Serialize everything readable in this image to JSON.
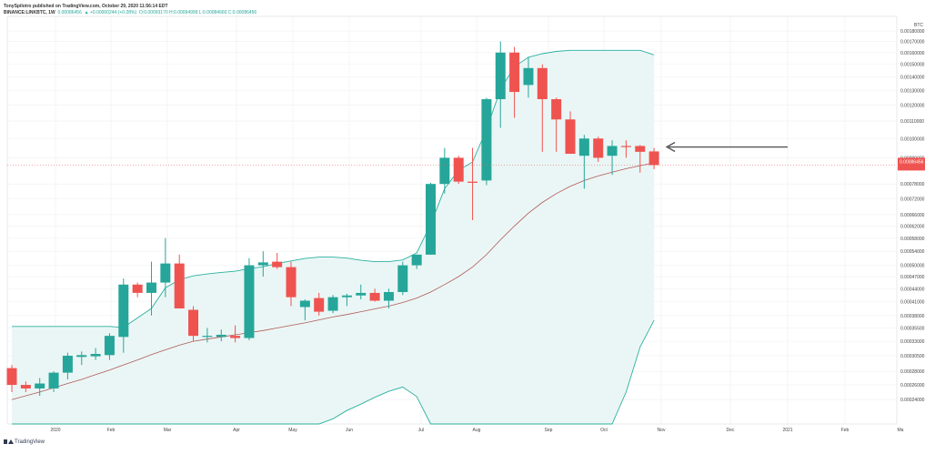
{
  "header": {
    "line1": "TonySpilotro published on TradingView.com, October 29, 2020 11:56:14 EDT",
    "symbol": "BINANCE:LINKBTC, 1W",
    "price": "0.00086456",
    "change": "▲ +0.00000244 (+0.28%)",
    "ohlc": "O:0.00093170 H:0.00094999 L:0.00084660 C:0.00086456"
  },
  "brand": {
    "name": "TradingView"
  },
  "colors": {
    "up": "#26a69a",
    "down": "#ef5350",
    "band": "#2bb0a0",
    "band_fill": "#eaf6f5",
    "basis": "#b05a5a",
    "arrow": "#555555",
    "grid": "#eef0f2"
  },
  "chart_data": {
    "type": "candlestick",
    "currency_label": "BTC",
    "scale": "log",
    "ylim": [
      0.00021,
      0.00195
    ],
    "last_value_label": "0.00086456",
    "y_ticks": [
      "0.00180000",
      "0.00170000",
      "0.00160000",
      "0.00150000",
      "0.00140000",
      "0.00130000",
      "0.00120000",
      "0.00110000",
      "0.00100000",
      "0.00090000",
      "0.00078000",
      "0.00072000",
      "0.00066000",
      "0.00062000",
      "0.00058000",
      "0.00054000",
      "0.00050000",
      "0.00047000",
      "0.00044000",
      "0.00041000",
      "0.00038000",
      "0.00035500",
      "0.00033000",
      "0.00030500",
      "0.00028000",
      "0.00026000",
      "0.00024000"
    ],
    "x_ticks": [
      "2020",
      "Feb",
      "Mar",
      "Apr",
      "May",
      "Jun",
      "Jul",
      "Aug",
      "Sep",
      "Oct",
      "Nov",
      "Dec",
      "2021",
      "Feb",
      "Ma"
    ],
    "candles": [
      {
        "o": 0.000285,
        "h": 0.00029,
        "l": 0.00025,
        "c": 0.00026
      },
      {
        "o": 0.00026,
        "h": 0.000265,
        "l": 0.00025,
        "c": 0.000255
      },
      {
        "o": 0.000255,
        "h": 0.00027,
        "l": 0.000245,
        "c": 0.000262
      },
      {
        "o": 0.000255,
        "h": 0.00028,
        "l": 0.00025,
        "c": 0.000278
      },
      {
        "o": 0.000278,
        "h": 0.00031,
        "l": 0.000268,
        "c": 0.000305
      },
      {
        "o": 0.000303,
        "h": 0.000312,
        "l": 0.00029,
        "c": 0.000306
      },
      {
        "o": 0.000304,
        "h": 0.000318,
        "l": 0.000298,
        "c": 0.000308
      },
      {
        "o": 0.000306,
        "h": 0.000345,
        "l": 0.000298,
        "c": 0.00034
      },
      {
        "o": 0.000338,
        "h": 0.000465,
        "l": 0.00031,
        "c": 0.00045
      },
      {
        "o": 0.00045,
        "h": 0.000455,
        "l": 0.00042,
        "c": 0.00043
      },
      {
        "o": 0.00043,
        "h": 0.00051,
        "l": 0.00038,
        "c": 0.000455
      },
      {
        "o": 0.000455,
        "h": 0.00058,
        "l": 0.00042,
        "c": 0.000505
      },
      {
        "o": 0.000505,
        "h": 0.00053,
        "l": 0.0004,
        "c": 0.000395
      },
      {
        "o": 0.000392,
        "h": 0.0004,
        "l": 0.00033,
        "c": 0.00034
      },
      {
        "o": 0.00034,
        "h": 0.000355,
        "l": 0.000328,
        "c": 0.00034
      },
      {
        "o": 0.000338,
        "h": 0.000352,
        "l": 0.00033,
        "c": 0.000342
      },
      {
        "o": 0.00034,
        "h": 0.00036,
        "l": 0.000328,
        "c": 0.000336
      },
      {
        "o": 0.000336,
        "h": 0.00052,
        "l": 0.000332,
        "c": 0.0005
      },
      {
        "o": 0.0005,
        "h": 0.00054,
        "l": 0.00047,
        "c": 0.000508
      },
      {
        "o": 0.00051,
        "h": 0.000535,
        "l": 0.00049,
        "c": 0.000495
      },
      {
        "o": 0.000495,
        "h": 0.00051,
        "l": 0.0004,
        "c": 0.00042
      },
      {
        "o": 0.000398,
        "h": 0.000415,
        "l": 0.00037,
        "c": 0.000412
      },
      {
        "o": 0.000418,
        "h": 0.00043,
        "l": 0.00038,
        "c": 0.000388
      },
      {
        "o": 0.00039,
        "h": 0.000425,
        "l": 0.000385,
        "c": 0.00042
      },
      {
        "o": 0.00042,
        "h": 0.000428,
        "l": 0.0004,
        "c": 0.000424
      },
      {
        "o": 0.000424,
        "h": 0.00045,
        "l": 0.000415,
        "c": 0.00043
      },
      {
        "o": 0.00043,
        "h": 0.00044,
        "l": 0.00041,
        "c": 0.000412
      },
      {
        "o": 0.000412,
        "h": 0.00044,
        "l": 0.000395,
        "c": 0.000432
      },
      {
        "o": 0.000432,
        "h": 0.00051,
        "l": 0.000425,
        "c": 0.0005
      },
      {
        "o": 0.0005,
        "h": 0.00053,
        "l": 0.00049,
        "c": 0.00053
      },
      {
        "o": 0.00053,
        "h": 0.000785,
        "l": 0.00053,
        "c": 0.00078
      },
      {
        "o": 0.00078,
        "h": 0.00095,
        "l": 0.00074,
        "c": 0.0009
      },
      {
        "o": 0.0009,
        "h": 0.00091,
        "l": 0.00078,
        "c": 0.00079
      },
      {
        "o": 0.00079,
        "h": 0.00095,
        "l": 0.00064,
        "c": 0.000785
      },
      {
        "o": 0.000795,
        "h": 0.00125,
        "l": 0.000775,
        "c": 0.00124
      },
      {
        "o": 0.00124,
        "h": 0.0017,
        "l": 0.00106,
        "c": 0.0016
      },
      {
        "o": 0.0016,
        "h": 0.00165,
        "l": 0.00112,
        "c": 0.00129
      },
      {
        "o": 0.00134,
        "h": 0.00156,
        "l": 0.00125,
        "c": 0.00147
      },
      {
        "o": 0.00147,
        "h": 0.0015,
        "l": 0.00093,
        "c": 0.00124
      },
      {
        "o": 0.00124,
        "h": 0.00125,
        "l": 0.00093,
        "c": 0.00111
      },
      {
        "o": 0.00111,
        "h": 0.00116,
        "l": 0.00092,
        "c": 0.00092
      },
      {
        "o": 0.00091,
        "h": 0.00102,
        "l": 0.00076,
        "c": 0.001
      },
      {
        "o": 0.001,
        "h": 0.00101,
        "l": 0.00088,
        "c": 0.0009
      },
      {
        "o": 0.00091,
        "h": 0.00099,
        "l": 0.00082,
        "c": 0.00096
      },
      {
        "o": 0.00096,
        "h": 0.00099,
        "l": 0.0009,
        "c": 0.000955
      },
      {
        "o": 0.00096,
        "h": 0.000965,
        "l": 0.00083,
        "c": 0.00093
      },
      {
        "o": 0.000932,
        "h": 0.00095,
        "l": 0.000846,
        "c": 0.000865
      }
    ],
    "bollinger_start_index": 0,
    "bollinger_upper": [
      0.000358,
      0.000358,
      0.000358,
      0.000358,
      0.000358,
      0.000358,
      0.000358,
      0.000358,
      0.000356,
      0.000375,
      0.000395,
      0.000442,
      0.000462,
      0.000472,
      0.000477,
      0.000481,
      0.000484,
      0.000491,
      0.000496,
      0.000505,
      0.000512,
      0.000519,
      0.000523,
      0.000523,
      0.00052,
      0.000514,
      0.00051,
      0.00051,
      0.000515,
      0.000535,
      0.000625,
      0.00076,
      0.00084,
      0.00088,
      0.00105,
      0.00131,
      0.00148,
      0.00156,
      0.00159,
      0.00161,
      0.00162,
      0.00162,
      0.00162,
      0.00162,
      0.00162,
      0.00162,
      0.00158
    ],
    "bollinger_basis": [
      0.00024,
      0.000245,
      0.00025,
      0.000256,
      0.000262,
      0.000268,
      0.000275,
      0.000282,
      0.00029,
      0.000298,
      0.000307,
      0.000315,
      0.000323,
      0.00033,
      0.000334,
      0.000338,
      0.000342,
      0.000346,
      0.00035,
      0.000355,
      0.00036,
      0.000365,
      0.000371,
      0.000377,
      0.000382,
      0.000388,
      0.000394,
      0.0004,
      0.000408,
      0.000418,
      0.000432,
      0.00045,
      0.00047,
      0.000495,
      0.00053,
      0.000575,
      0.00062,
      0.000665,
      0.000705,
      0.00074,
      0.00077,
      0.000795,
      0.000815,
      0.000832,
      0.000848,
      0.000862,
      0.000876
    ],
    "bollinger_lower": [
      0.00015,
      0.00015,
      0.00015,
      0.00015,
      0.00015,
      0.00015,
      0.00015,
      0.00015,
      0.00015,
      0.00015,
      0.00015,
      0.00015,
      0.00015,
      0.00015,
      0.00015,
      0.00015,
      0.00015,
      0.00015,
      0.00015,
      0.00015,
      0.00015,
      0.000175,
      0.0002,
      0.000216,
      0.000226,
      0.000234,
      0.000243,
      0.000251,
      0.000257,
      0.000244,
      0.0002,
      0.00015,
      0.00015,
      0.00015,
      0.00015,
      0.00015,
      0.00015,
      0.00015,
      0.00015,
      0.00015,
      0.00015,
      0.00015,
      0.00015,
      0.000195,
      0.00025,
      0.00032,
      0.00037
    ],
    "annotation": {
      "type": "arrow",
      "points_to_index": 46,
      "value": 0.000955
    }
  }
}
